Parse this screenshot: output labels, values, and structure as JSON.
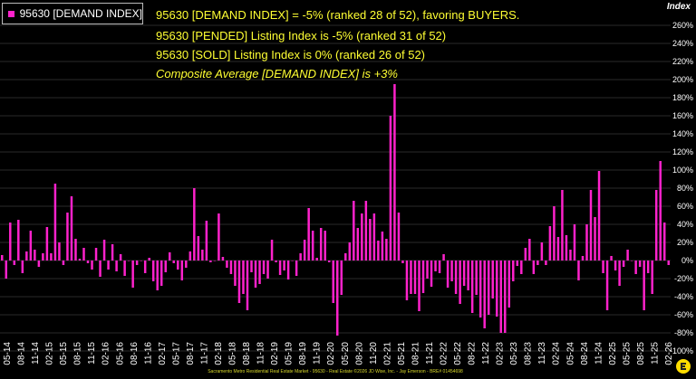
{
  "legend": {
    "label": "95630 [DEMAND INDEX]",
    "color": "#ff22cc"
  },
  "notes": [
    "95630 [DEMAND INDEX] = -5% (ranked 28 of 52), favoring BUYERS.",
    "95630 [PENDED] Listing Index is -5% (ranked 31 of 52)",
    "95630 [SOLD] Listing Index is 0% (ranked 26 of 52)",
    "Composite Average [DEMAND INDEX] is +3%"
  ],
  "footer": "Sacramento Metro Residential Real Estate Market - 95630 - Real Estate ©2026 JD Wise, Inc. - Jay Emerson - BRE# 01454698",
  "colors": {
    "bar": "#ff22cc",
    "note_text": "#ffff33",
    "axis_text": "#ffffff",
    "background": "#000000"
  },
  "chart_data": {
    "type": "bar",
    "ylabel": "Index",
    "ylim": [
      -100,
      270
    ],
    "yticks": [
      260,
      240,
      220,
      200,
      180,
      160,
      140,
      120,
      100,
      80,
      60,
      40,
      20,
      0,
      -20,
      -40,
      -60,
      -80,
      -100
    ],
    "ytick_labels": [
      "260%",
      "240%",
      "220%",
      "200%",
      "180%",
      "160%",
      "140%",
      "120%",
      "100%",
      "80%",
      "60%",
      "40%",
      "20%",
      "0%",
      "-20%",
      "-40%",
      "-60%",
      "-80%",
      "-100%"
    ],
    "xtick_labels": [
      "05-14",
      "08-14",
      "11-14",
      "02-15",
      "05-15",
      "08-15",
      "11-15",
      "02-16",
      "05-16",
      "08-16",
      "11-16",
      "02-17",
      "05-17",
      "08-17",
      "11-17",
      "02-18",
      "05-18",
      "08-18",
      "11-18",
      "02-19",
      "05-19",
      "08-19",
      "11-19",
      "02-20",
      "05-20",
      "08-20",
      "11-20",
      "02-21",
      "05-21",
      "08-21",
      "11-21",
      "02-22",
      "05-22",
      "08-22",
      "11-22",
      "02-23",
      "05-23",
      "08-23",
      "11-23",
      "02-24",
      "05-24",
      "08-24",
      "11-24",
      "02-25",
      "05-25",
      "08-25",
      "11-25",
      "02-26"
    ],
    "series": [
      {
        "name": "95630 [DEMAND INDEX]",
        "values": [
          6,
          -20,
          42,
          -5,
          45,
          -14,
          10,
          33,
          12,
          -7,
          8,
          37,
          8,
          85,
          20,
          -5,
          53,
          71,
          24,
          2,
          14,
          -3,
          -10,
          14,
          -18,
          23,
          -10,
          18,
          -12,
          7,
          -17,
          0,
          -30,
          -5,
          0,
          -14,
          3,
          -23,
          -33,
          -28,
          -13,
          9,
          -3,
          -10,
          -22,
          -8,
          10,
          80,
          27,
          12,
          44,
          -2,
          0,
          52,
          4,
          -8,
          -15,
          -28,
          -47,
          -37,
          -55,
          -13,
          -30,
          -26,
          -15,
          -20,
          23,
          -2,
          -16,
          -11,
          -21,
          0,
          -17,
          8,
          23,
          58,
          33,
          3,
          36,
          33,
          -2,
          -47,
          -83,
          -38,
          8,
          20,
          66,
          36,
          52,
          66,
          46,
          52,
          22,
          32,
          24,
          160,
          195,
          53,
          -3,
          -44,
          -37,
          -37,
          -56,
          -36,
          -20,
          -29,
          -12,
          -14,
          7,
          -30,
          -23,
          -37,
          -48,
          -28,
          -33,
          -58,
          -38,
          -63,
          -75,
          -60,
          -42,
          -62,
          -80,
          -80,
          -52,
          -23,
          -6,
          -15,
          14,
          24,
          -15,
          -5,
          20,
          -5,
          38,
          60,
          26,
          78,
          28,
          12,
          40,
          -22,
          5,
          40,
          78,
          48,
          99,
          -14,
          -55,
          5,
          -11,
          -28,
          -7,
          12,
          0,
          -15,
          -7,
          -55,
          -14,
          -37,
          78,
          110,
          42,
          -5
        ]
      }
    ]
  }
}
